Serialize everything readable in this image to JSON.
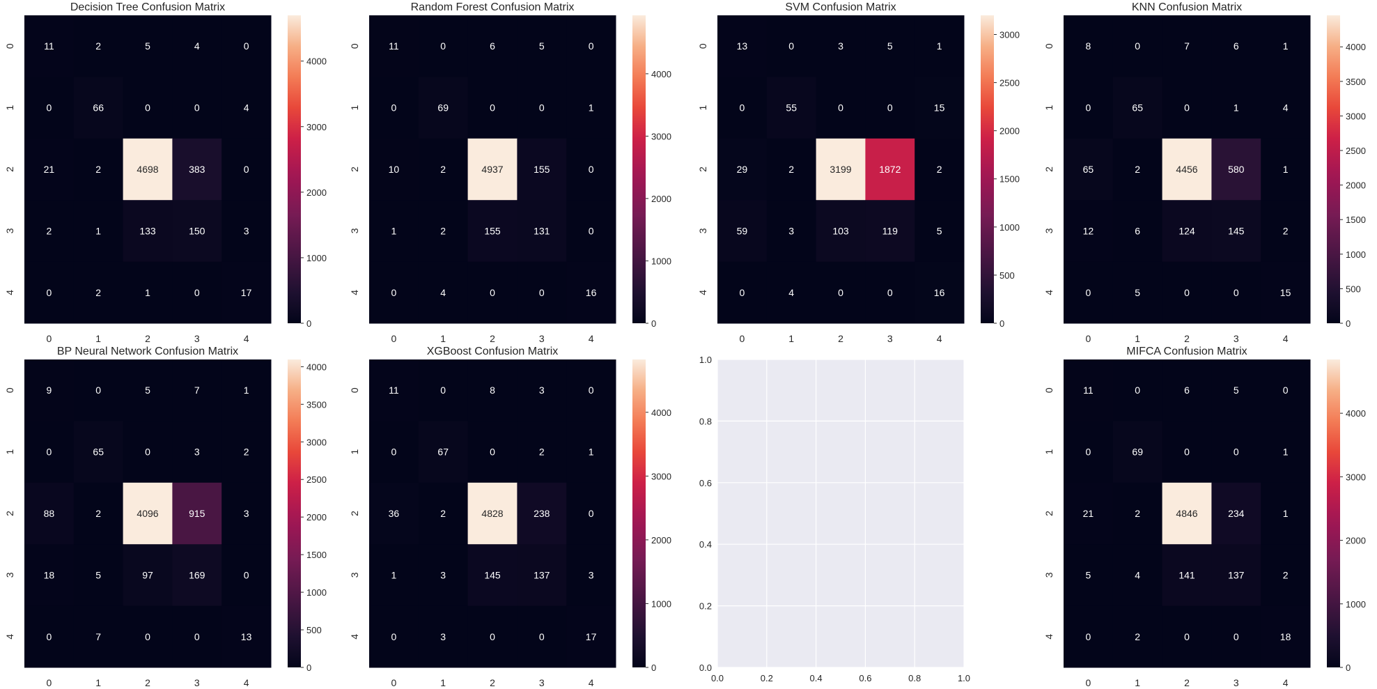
{
  "chart_data": [
    {
      "type": "heatmap",
      "title": "Decision Tree Confusion Matrix",
      "x_ticks": [
        "0",
        "1",
        "2",
        "3",
        "4"
      ],
      "y_ticks": [
        "0",
        "1",
        "2",
        "3",
        "4"
      ],
      "values": [
        [
          11,
          2,
          5,
          4,
          0
        ],
        [
          0,
          66,
          0,
          0,
          4
        ],
        [
          21,
          2,
          4698,
          383,
          0
        ],
        [
          2,
          1,
          133,
          150,
          3
        ],
        [
          0,
          2,
          1,
          0,
          17
        ]
      ],
      "vmin": 0,
      "vmax": 4698,
      "colorbar_ticks": [
        0,
        1000,
        2000,
        3000,
        4000
      ],
      "colormap": "rocket"
    },
    {
      "type": "heatmap",
      "title": "Random Forest Confusion Matrix",
      "x_ticks": [
        "0",
        "1",
        "2",
        "3",
        "4"
      ],
      "y_ticks": [
        "0",
        "1",
        "2",
        "3",
        "4"
      ],
      "values": [
        [
          11,
          0,
          6,
          5,
          0
        ],
        [
          0,
          69,
          0,
          0,
          1
        ],
        [
          10,
          2,
          4937,
          155,
          0
        ],
        [
          1,
          2,
          155,
          131,
          0
        ],
        [
          0,
          4,
          0,
          0,
          16
        ]
      ],
      "vmin": 0,
      "vmax": 4937,
      "colorbar_ticks": [
        0,
        1000,
        2000,
        3000,
        4000
      ],
      "colormap": "rocket"
    },
    {
      "type": "heatmap",
      "title": "SVM Confusion Matrix",
      "x_ticks": [
        "0",
        "1",
        "2",
        "3",
        "4"
      ],
      "y_ticks": [
        "0",
        "1",
        "2",
        "3",
        "4"
      ],
      "values": [
        [
          13,
          0,
          3,
          5,
          1
        ],
        [
          0,
          55,
          0,
          0,
          15
        ],
        [
          29,
          2,
          3199,
          1872,
          2
        ],
        [
          59,
          3,
          103,
          119,
          5
        ],
        [
          0,
          4,
          0,
          0,
          16
        ]
      ],
      "vmin": 0,
      "vmax": 3199,
      "colorbar_ticks": [
        0,
        500,
        1000,
        1500,
        2000,
        2500,
        3000
      ],
      "colormap": "rocket"
    },
    {
      "type": "heatmap",
      "title": "KNN Confusion Matrix",
      "x_ticks": [
        "0",
        "1",
        "2",
        "3",
        "4"
      ],
      "y_ticks": [
        "0",
        "1",
        "2",
        "3",
        "4"
      ],
      "values": [
        [
          8,
          0,
          7,
          6,
          1
        ],
        [
          0,
          65,
          0,
          1,
          4
        ],
        [
          65,
          2,
          4456,
          580,
          1
        ],
        [
          12,
          6,
          124,
          145,
          2
        ],
        [
          0,
          5,
          0,
          0,
          15
        ]
      ],
      "vmin": 0,
      "vmax": 4456,
      "colorbar_ticks": [
        0,
        500,
        1000,
        1500,
        2000,
        2500,
        3000,
        3500,
        4000
      ],
      "colormap": "rocket"
    },
    {
      "type": "heatmap",
      "title": "BP Neural Network Confusion Matrix",
      "x_ticks": [
        "0",
        "1",
        "2",
        "3",
        "4"
      ],
      "y_ticks": [
        "0",
        "1",
        "2",
        "3",
        "4"
      ],
      "values": [
        [
          9,
          0,
          5,
          7,
          1
        ],
        [
          0,
          65,
          0,
          3,
          2
        ],
        [
          88,
          2,
          4096,
          915,
          3
        ],
        [
          18,
          5,
          97,
          169,
          0
        ],
        [
          0,
          7,
          0,
          0,
          13
        ]
      ],
      "vmin": 0,
      "vmax": 4096,
      "colorbar_ticks": [
        0,
        500,
        1000,
        1500,
        2000,
        2500,
        3000,
        3500,
        4000
      ],
      "colormap": "rocket"
    },
    {
      "type": "heatmap",
      "title": "XGBoost Confusion Matrix",
      "x_ticks": [
        "0",
        "1",
        "2",
        "3",
        "4"
      ],
      "y_ticks": [
        "0",
        "1",
        "2",
        "3",
        "4"
      ],
      "values": [
        [
          11,
          0,
          8,
          3,
          0
        ],
        [
          0,
          67,
          0,
          2,
          1
        ],
        [
          36,
          2,
          4828,
          238,
          0
        ],
        [
          1,
          3,
          145,
          137,
          3
        ],
        [
          0,
          3,
          0,
          0,
          17
        ]
      ],
      "vmin": 0,
      "vmax": 4828,
      "colorbar_ticks": [
        0,
        1000,
        2000,
        3000,
        4000
      ],
      "colormap": "rocket"
    },
    {
      "type": "empty",
      "xlim": [
        0,
        1
      ],
      "ylim": [
        0,
        1
      ],
      "x_ticks": [
        "0.0",
        "0.2",
        "0.4",
        "0.6",
        "0.8",
        "1.0"
      ],
      "y_ticks": [
        "0.0",
        "0.2",
        "0.4",
        "0.6",
        "0.8",
        "1.0"
      ],
      "background": "#eaeaf2",
      "grid": true
    },
    {
      "type": "heatmap",
      "title": "MIFCA Confusion Matrix",
      "x_ticks": [
        "0",
        "1",
        "2",
        "3",
        "4"
      ],
      "y_ticks": [
        "0",
        "1",
        "2",
        "3",
        "4"
      ],
      "values": [
        [
          11,
          0,
          6,
          5,
          0
        ],
        [
          0,
          69,
          0,
          0,
          1
        ],
        [
          21,
          2,
          4846,
          234,
          1
        ],
        [
          5,
          4,
          141,
          137,
          2
        ],
        [
          0,
          2,
          0,
          0,
          18
        ]
      ],
      "vmin": 0,
      "vmax": 4846,
      "colorbar_ticks": [
        0,
        1000,
        2000,
        3000,
        4000
      ],
      "colormap": "rocket"
    }
  ]
}
